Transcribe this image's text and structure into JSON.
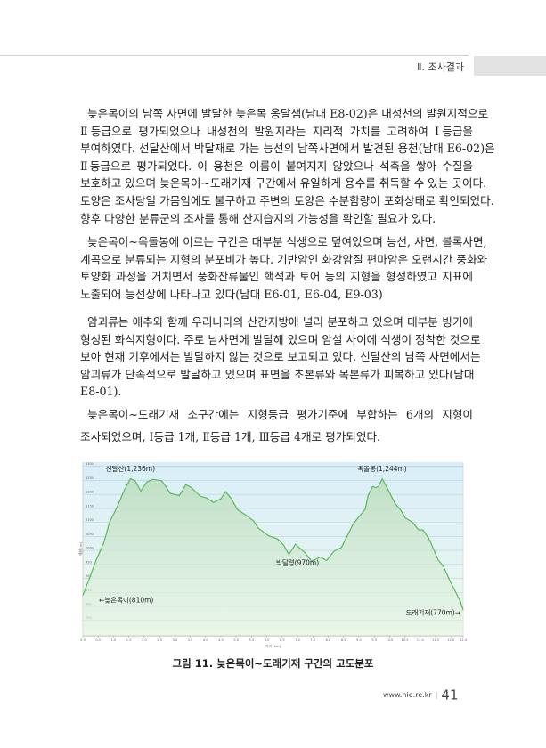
{
  "header": {
    "section_title": "Ⅱ. 조사결과"
  },
  "paragraphs": [
    {
      "lines": [
        "늦은목이의 남쪽 사면에 발달한 늦은목 옹달샘(남대 E8-02)은 내성천의 발원지점으로",
        "Ⅱ등급으로 평가되었으나 내성천의 발원지라는 지리적 가치를 고려하여 Ⅰ등급을",
        "부여하였다. 선달산에서 박달재로 가는 능선의 남쪽사면에서 발견된 용천(남대 E6-02)은",
        "Ⅱ등급으로 평가되었다. 이 용천은 이름이 붙여지지 않았으나 석축을 쌓아 수질을",
        "보호하고 있으며 늦은목이~도래기재 구간에서 유일하게 용수를 취득할 수 있는 곳이다.",
        "토양은 조사당일 가뭄임에도 불구하고 주변의 토양은 수분함량이 포화상태로 확인되었다.",
        "향후 다양한 분류군의 조사를 통해 산지습지의 가능성을 확인할 필요가 있다."
      ]
    },
    {
      "lines": [
        "늦은목이~옥돌봉에 이르는 구간은 대부분 식생으로 덮여있으며 능선, 사면, 볼록사면,",
        "계곡으로 분류되는 지형의 분포비가 높다. 기반암인 화강암질 편마암은 오랜시간 풍화와",
        "토양화 과정을 거치면서 풍화잔류물인 핵석과 토어 등의 지형을 형성하였고 지표에",
        "노출되어 능선상에 나타나고 있다(남대 E6-01, E6-04, E9-03)"
      ]
    },
    {
      "lines": [
        "암괴류는 애추와 함께 우리나라의 산간지방에 널리 분포하고 있으며 대부분 빙기에",
        "형성된 화석지형이다. 주로 남사면에 발달해 있으며 암설 사이에 식생이 정착한 것으로",
        "보아 현재 기후에서는 발달하지 않는 것으로 보고되고 있다. 선달산의 남쪽 사면에서는",
        "암괴류가 단속적으로 발달하고 있으며 표면을 초본류와 목본류가 피복하고 있다(남대",
        "E8-01)."
      ]
    },
    {
      "lines": [
        "늦은목이~도래기재 소구간에는 지형등급 평가기준에 부합하는 6개의 지형이",
        "조사되었으며, Ⅰ등급 1개, Ⅱ등급 1개, Ⅲ등급 4개로 평가되었다."
      ]
    }
  ],
  "chart_data": {
    "type": "area",
    "title": "",
    "xlabel": "거리 (km)",
    "ylabel": "해발 (m)",
    "xlim": [
      0,
      12.4
    ],
    "ylim": [
      695,
      1315
    ],
    "grid": true,
    "x_ticks": [
      "0.0",
      "0.5",
      "1.0",
      "1.5",
      "2.0",
      "2.5",
      "3.0",
      "3.5",
      "4.0",
      "4.5",
      "5.0",
      "5.5",
      "6.0",
      "6.5",
      "7.0",
      "7.5",
      "8.0",
      "8.5",
      "9.0",
      "9.5",
      "10.0",
      "10.5",
      "11.0",
      "11.5",
      "12.0",
      "12.4"
    ],
    "y_ticks": [
      750,
      800,
      850,
      900,
      950,
      1000,
      1050,
      1100,
      1150,
      1200,
      1250,
      1300
    ],
    "line_color": "#5cb85c",
    "series": [
      {
        "x": [
          0,
          0.19,
          0.44,
          0.68,
          0.87,
          1.11,
          1.36,
          1.55,
          1.7,
          1.89,
          2.08,
          2.28,
          2.57,
          2.86,
          3.15,
          3.36,
          3.54,
          3.83,
          4.02,
          4.26,
          4.51,
          4.65,
          4.84,
          5.04,
          5.38,
          5.57,
          5.72,
          6.06,
          6.35,
          6.54,
          6.72,
          6.93,
          7.22,
          7.46,
          7.75,
          7.95,
          8.19,
          8.43,
          8.57,
          8.82,
          9.01,
          9.21,
          9.3,
          9.45,
          9.55,
          9.64,
          9.76,
          9.93,
          10.17,
          10.37,
          10.51,
          10.75,
          10.95,
          11.09,
          11.29,
          11.58,
          11.77,
          11.96,
          12.16,
          12.31,
          12.4
        ],
        "y": [
          839,
          893,
          967,
          1026,
          1100,
          1153,
          1217,
          1256,
          1249,
          1212,
          1244,
          1254,
          1249,
          1203,
          1196,
          1235,
          1224,
          1193,
          1188,
          1171,
          1185,
          1210,
          1185,
          1146,
          1121,
          1105,
          1079,
          1052,
          1041,
          1020,
          985,
          1022,
          994,
          962,
          976,
          964,
          997,
          1010,
          1041,
          1095,
          1121,
          1148,
          1196,
          1228,
          1224,
          1228,
          1256,
          1222,
          1169,
          1143,
          1116,
          1100,
          1073,
          1073,
          1041,
          967,
          940,
          893,
          850,
          818,
          786
        ]
      }
    ],
    "annotations": [
      {
        "text": "선달산(1,236m)",
        "x": 1.55,
        "y": 1283
      },
      {
        "text": "옥돌봉(1,244m)",
        "x": 9.76,
        "y": 1283
      },
      {
        "text": "박달령(970m)",
        "x": 7.0,
        "y": 947
      },
      {
        "text": "←늦은목이(810m)",
        "x": 0.3,
        "y": 815
      },
      {
        "text": "도래기재(770m)→",
        "x": 11.3,
        "y": 770
      }
    ]
  },
  "caption": "그림 11. 늦은목이~도래기재 구간의 고도분포",
  "footer": {
    "url": "www.nie.re.kr",
    "page_number": "41"
  }
}
